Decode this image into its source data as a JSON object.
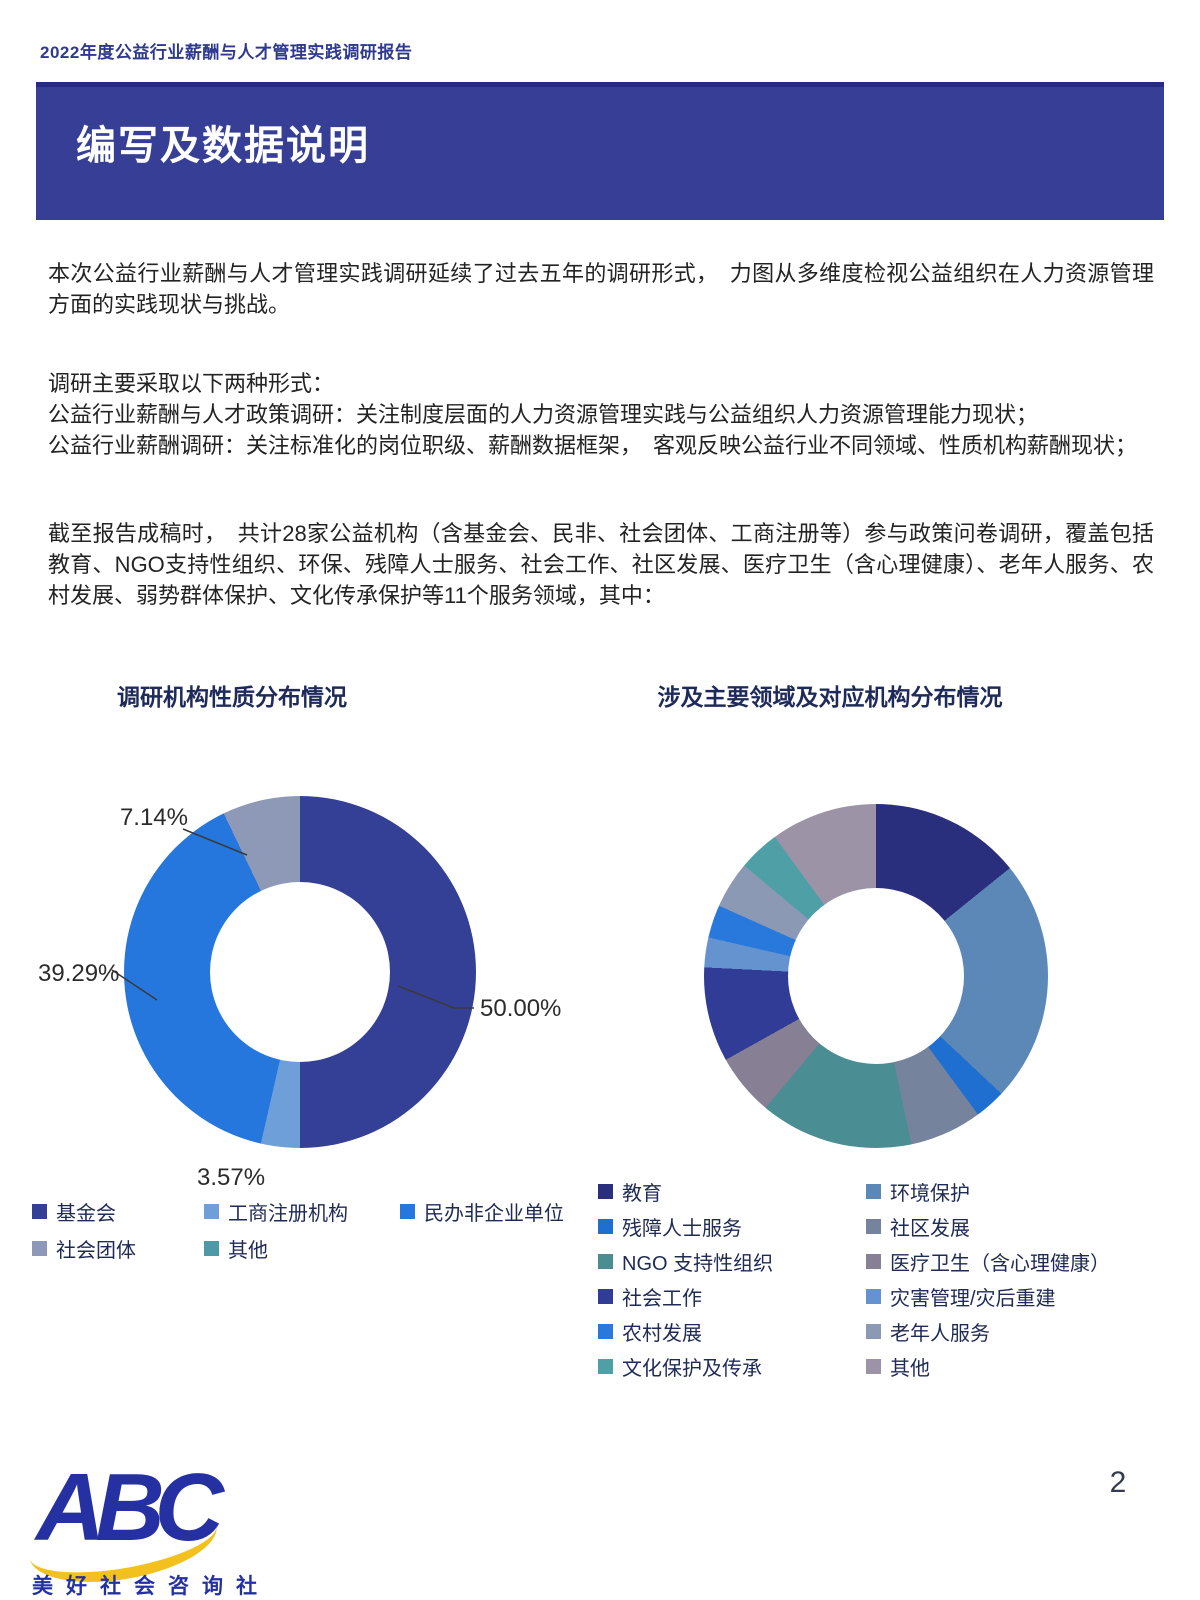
{
  "header": {
    "title": "2022年度公益行业薪酬与人才管理实践调研报告"
  },
  "banner": {
    "title": "编写及数据说明"
  },
  "paragraphs": {
    "p1": "本次公益行业薪酬与人才管理实践调研延续了过去五年的调研形式，　力图从多维度检视公益组织在人力资源管理方面的实践现状与挑战。",
    "p2_line1": "调研主要采取以下两种形式：",
    "p2_line2": "公益行业薪酬与人才政策调研：关注制度层面的人力资源管理实践与公益组织人力资源管理能力现状；",
    "p2_line3": "公益行业薪酬调研：关注标准化的岗位职级、薪酬数据框架，　客观反映公益行业不同领域、性质机构薪酬现状；",
    "p3": "截至报告成稿时，　共计28家公益机构（含基金会、民非、社会团体、工商注册等）参与政策问卷调研，覆盖包括教育、NGO支持性组织、环保、残障人士服务、社会工作、社区发展、医疗卫生（含心理健康）、老年人服务、农村发展、弱势群体保护、文化传承保护等11个服务领域，其中："
  },
  "chart_data": [
    {
      "type": "pie",
      "donut": true,
      "title": "调研机构性质分布情况",
      "legend_position": "bottom",
      "series": [
        {
          "name": "基金会",
          "value": 50.0,
          "label": "50.00%",
          "color": "#343F96"
        },
        {
          "name": "工商注册机构",
          "value": 3.57,
          "label": "3.57%",
          "color": "#6F9FD9"
        },
        {
          "name": "民办非企业单位",
          "value": 39.29,
          "label": "39.29%",
          "color": "#2577DD"
        },
        {
          "name": "社会团体",
          "value": 7.14,
          "label": "7.14%",
          "color": "#8D99B6"
        },
        {
          "name": "其他",
          "value": 0,
          "label": "",
          "color": "#4E99A8"
        }
      ]
    },
    {
      "type": "pie",
      "donut": true,
      "title": "涉及主要领域及对应机构分布情况",
      "legend_position": "bottom",
      "series": [
        {
          "name": "教育",
          "value": 14.2,
          "color": "#292F7C"
        },
        {
          "name": "环境保护",
          "value": 22.8,
          "color": "#5C88B8"
        },
        {
          "name": "残障人士服务",
          "value": 2.9,
          "color": "#1F6FD0"
        },
        {
          "name": "社区发展",
          "value": 6.8,
          "color": "#75839D"
        },
        {
          "name": "NGO 支持性组织",
          "value": 14.4,
          "color": "#4A8D92"
        },
        {
          "name": "医疗卫生（含心理健康）",
          "value": 5.8,
          "color": "#877F93"
        },
        {
          "name": "社会工作",
          "value": 8.9,
          "color": "#303C96"
        },
        {
          "name": "灾害管理/灾后重建",
          "value": 2.8,
          "color": "#6493D0"
        },
        {
          "name": "农村发展",
          "value": 3.1,
          "color": "#2879DB"
        },
        {
          "name": "老年人服务",
          "value": 4.4,
          "color": "#8C99B4"
        },
        {
          "name": "文化保护及传承",
          "value": 3.9,
          "color": "#4FA0A6"
        },
        {
          "name": "其他",
          "value": 10.0,
          "color": "#9C93A7"
        }
      ]
    }
  ],
  "footer": {
    "logo_text": "ABC",
    "logo_subtext": "美好社会咨询社",
    "page_number": "2"
  }
}
